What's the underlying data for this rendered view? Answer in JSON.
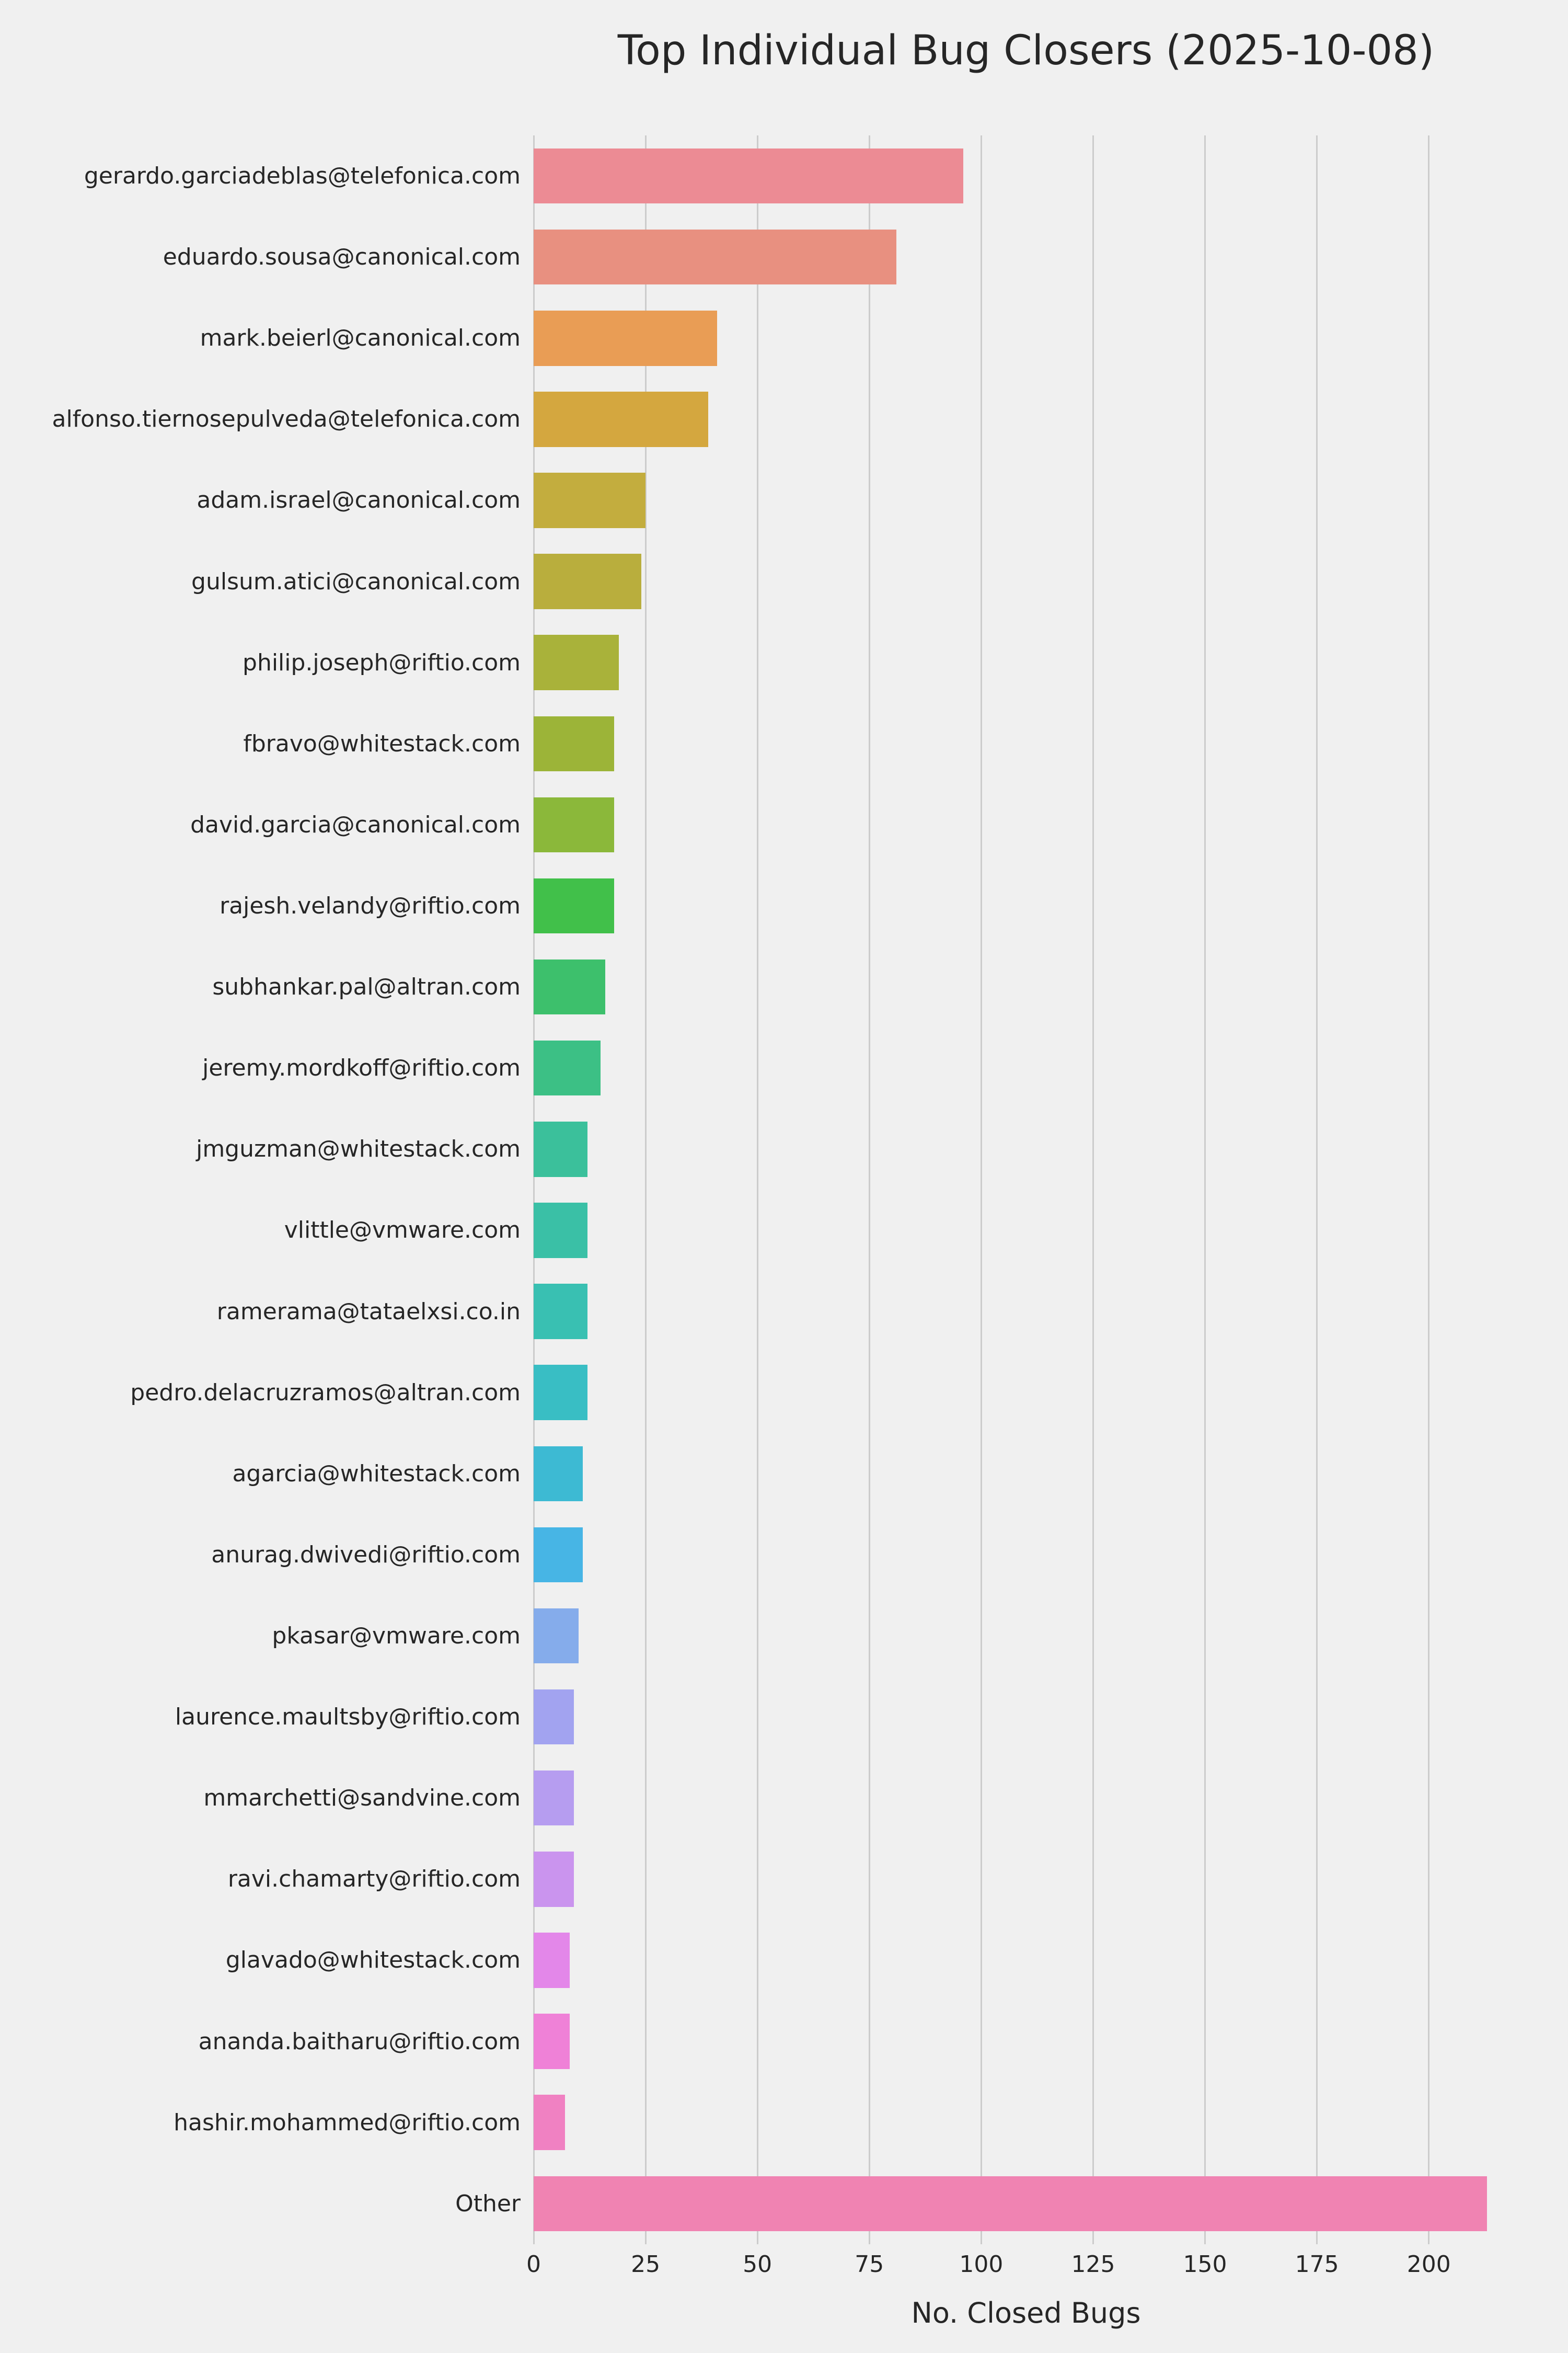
{
  "chart_data": {
    "type": "bar",
    "orientation": "horizontal",
    "title": "Top Individual Bug Closers (2025-10-08)",
    "xlabel": "No. Closed Bugs",
    "ylabel": "",
    "xlim": [
      0,
      220
    ],
    "xticks": [
      0,
      25,
      50,
      75,
      100,
      125,
      150,
      175,
      200
    ],
    "grid": true,
    "legend": "none",
    "background_color": "#f0f0f0",
    "gridline_color": "#cccccc",
    "text_color": "#262626",
    "categories": [
      "gerardo.garciadeblas@telefonica.com",
      "eduardo.sousa@canonical.com",
      "mark.beierl@canonical.com",
      "alfonso.tiernosepulveda@telefonica.com",
      "adam.israel@canonical.com",
      "gulsum.atici@canonical.com",
      "philip.joseph@riftio.com",
      "fbravo@whitestack.com",
      "david.garcia@canonical.com",
      "rajesh.velandy@riftio.com",
      "subhankar.pal@altran.com",
      "jeremy.mordkoff@riftio.com",
      "jmguzman@whitestack.com",
      "vlittle@vmware.com",
      "ramerama@tataelxsi.co.in",
      "pedro.delacruzramos@altran.com",
      "agarcia@whitestack.com",
      "anurag.dwivedi@riftio.com",
      "pkasar@vmware.com",
      "laurence.maultsby@riftio.com",
      "mmarchetti@sandvine.com",
      "ravi.chamarty@riftio.com",
      "glavado@whitestack.com",
      "ananda.baitharu@riftio.com",
      "hashir.mohammed@riftio.com",
      "Other"
    ],
    "values": [
      96,
      81,
      41,
      39,
      25,
      24,
      19,
      18,
      18,
      18,
      16,
      15,
      12,
      12,
      12,
      12,
      11,
      11,
      10,
      9,
      9,
      9,
      8,
      8,
      7,
      213
    ],
    "colors": [
      "#ec8b94",
      "#e89080",
      "#e99d55",
      "#d4a73f",
      "#c3ad3e",
      "#b9ae3d",
      "#a9b23a",
      "#9cb438",
      "#8bb83a",
      "#41c04a",
      "#3dc06c",
      "#3cc085",
      "#3bc09b",
      "#3ac0a6",
      "#39c0b2",
      "#39bec4",
      "#3dbad3",
      "#47b5e5",
      "#85aceb",
      "#a2a3f0",
      "#b69df0",
      "#ca94ee",
      "#e387e9",
      "#ef81d7",
      "#f081c2",
      "#f083b2"
    ]
  }
}
